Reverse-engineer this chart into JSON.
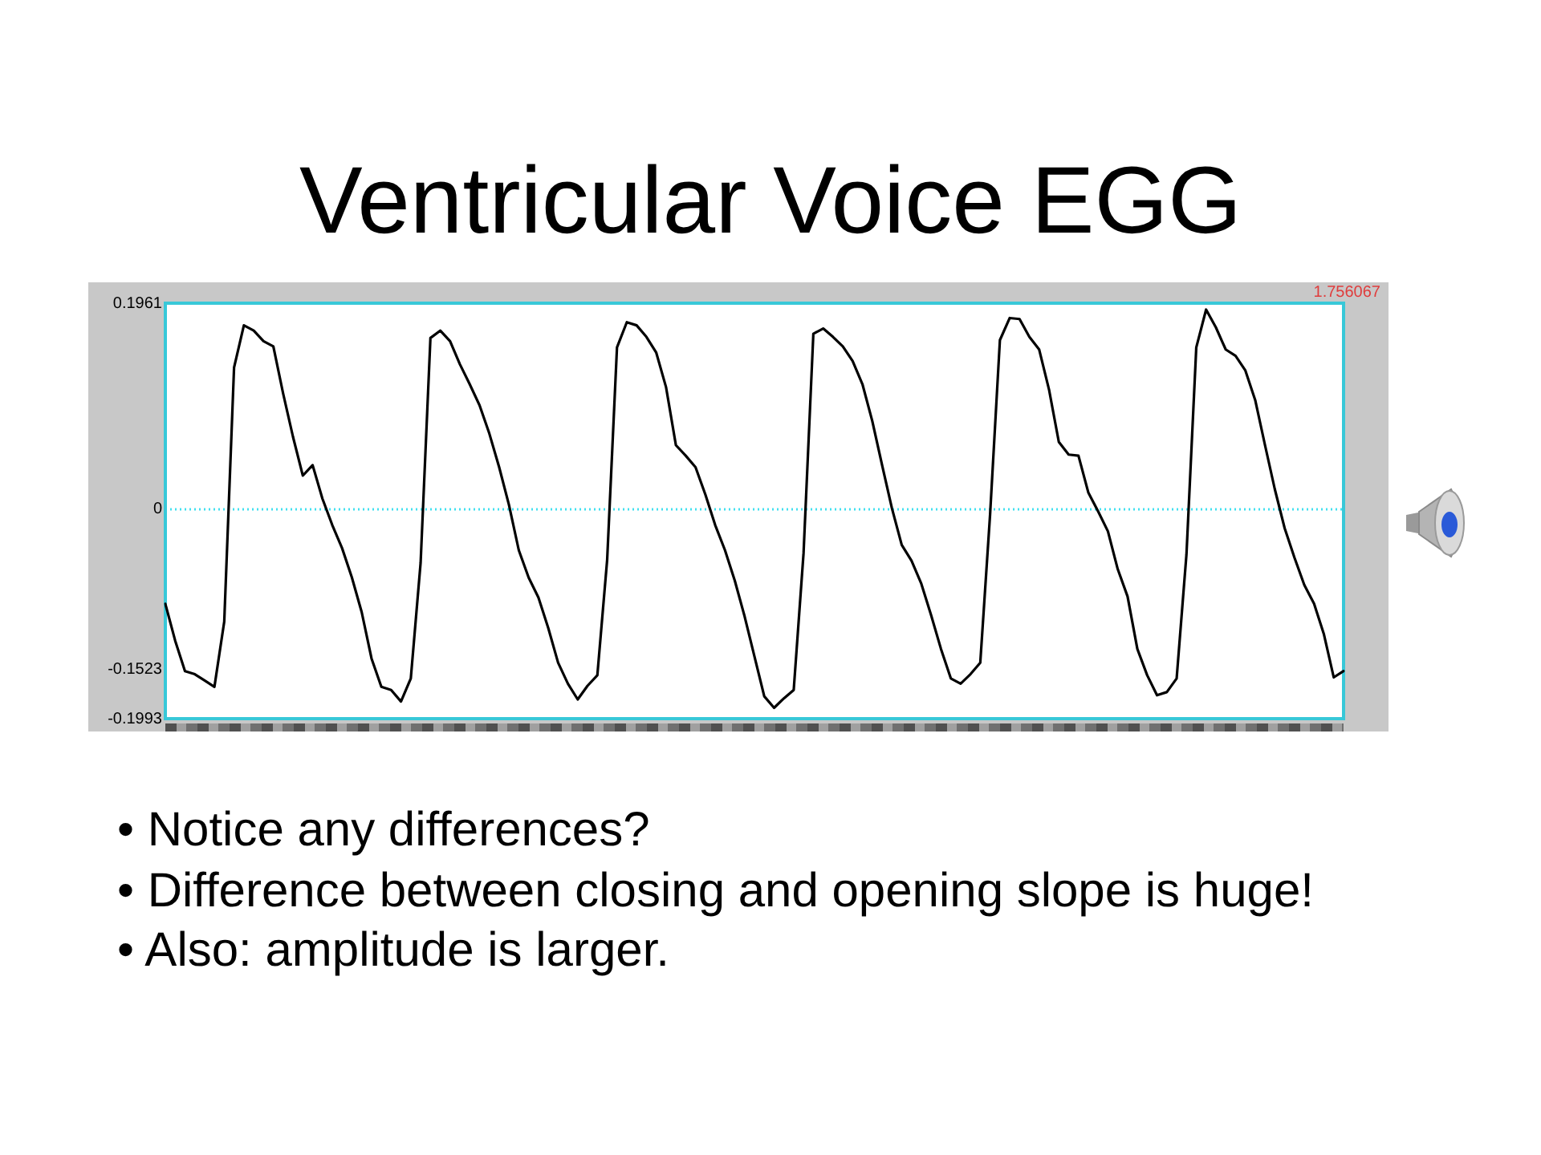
{
  "chart_data": {
    "type": "line",
    "title": "Ventricular Voice EGG",
    "categories": [
      null,
      null,
      null,
      null,
      null,
      null,
      null,
      null,
      null,
      null,
      null,
      null,
      null,
      null,
      null,
      null,
      null,
      null,
      null,
      null,
      null,
      null,
      null,
      null,
      null,
      null,
      null,
      null,
      null,
      null,
      null,
      null,
      null,
      null,
      null,
      null,
      null,
      null,
      null,
      null,
      null,
      null,
      null,
      null,
      null,
      null,
      null,
      null,
      null,
      null,
      null,
      null,
      null,
      null,
      null,
      null,
      null,
      null,
      null,
      null,
      null,
      null,
      null,
      null,
      null,
      null,
      null,
      null,
      null,
      null,
      null,
      null,
      null,
      null,
      null,
      null,
      null,
      null,
      null,
      null,
      null,
      null,
      null,
      null,
      null,
      null,
      null,
      null,
      null,
      null,
      null,
      null,
      null,
      null,
      null,
      null,
      null,
      null,
      null,
      null,
      null,
      null,
      null,
      null,
      null,
      null,
      null,
      null,
      null,
      null,
      null,
      null,
      null,
      null,
      null,
      null,
      null,
      null,
      null,
      null,
      null
    ],
    "values": [
      -0.09,
      -0.125,
      -0.154,
      -0.157,
      -0.163,
      -0.169,
      -0.107,
      0.135,
      0.175,
      0.17,
      0.16,
      0.155,
      0.11,
      0.069,
      0.032,
      0.042,
      0.01,
      -0.015,
      -0.037,
      -0.065,
      -0.098,
      -0.142,
      -0.169,
      -0.172,
      -0.183,
      -0.161,
      -0.051,
      0.163,
      0.17,
      0.16,
      0.138,
      0.119,
      0.099,
      0.072,
      0.04,
      0.004,
      -0.039,
      -0.065,
      -0.084,
      -0.113,
      -0.146,
      -0.166,
      -0.181,
      -0.168,
      -0.158,
      -0.048,
      0.154,
      0.178,
      0.175,
      0.164,
      0.149,
      0.116,
      0.061,
      0.051,
      0.04,
      0.014,
      -0.015,
      -0.039,
      -0.068,
      -0.102,
      -0.14,
      -0.178,
      -0.189,
      -0.18,
      -0.172,
      -0.042,
      0.167,
      0.172,
      0.164,
      0.155,
      0.141,
      0.119,
      0.084,
      0.042,
      0.001,
      -0.034,
      -0.049,
      -0.071,
      -0.101,
      -0.133,
      -0.161,
      -0.166,
      -0.157,
      -0.146,
      -0.005,
      0.161,
      0.182,
      0.181,
      0.164,
      0.152,
      0.114,
      0.064,
      0.052,
      0.051,
      0.016,
      -0.002,
      -0.021,
      -0.057,
      -0.083,
      -0.133,
      -0.158,
      -0.177,
      -0.174,
      -0.161,
      -0.043,
      0.154,
      0.19,
      0.173,
      0.152,
      0.146,
      0.132,
      0.104,
      0.061,
      0.019,
      -0.018,
      -0.046,
      -0.072,
      -0.09,
      -0.119,
      -0.16,
      -0.154
    ],
    "color": "#000000",
    "ylim": [
      -0.1993,
      0.1961
    ],
    "yticks": [
      -0.1993,
      -0.1523,
      0,
      0.1961
    ],
    "tick_labels": "y",
    "grid": false,
    "marker": "none",
    "line_style": "solid",
    "ref_lines": [
      {
        "axis": "y",
        "value": 0,
        "color": "#40e0f0",
        "line_style": "dotted"
      }
    ],
    "annotations": [
      "1.756067",
      "• Notice any differences?",
      "• Difference between closing and opening slope is huge!",
      "• Also: amplitude is larger."
    ]
  }
}
